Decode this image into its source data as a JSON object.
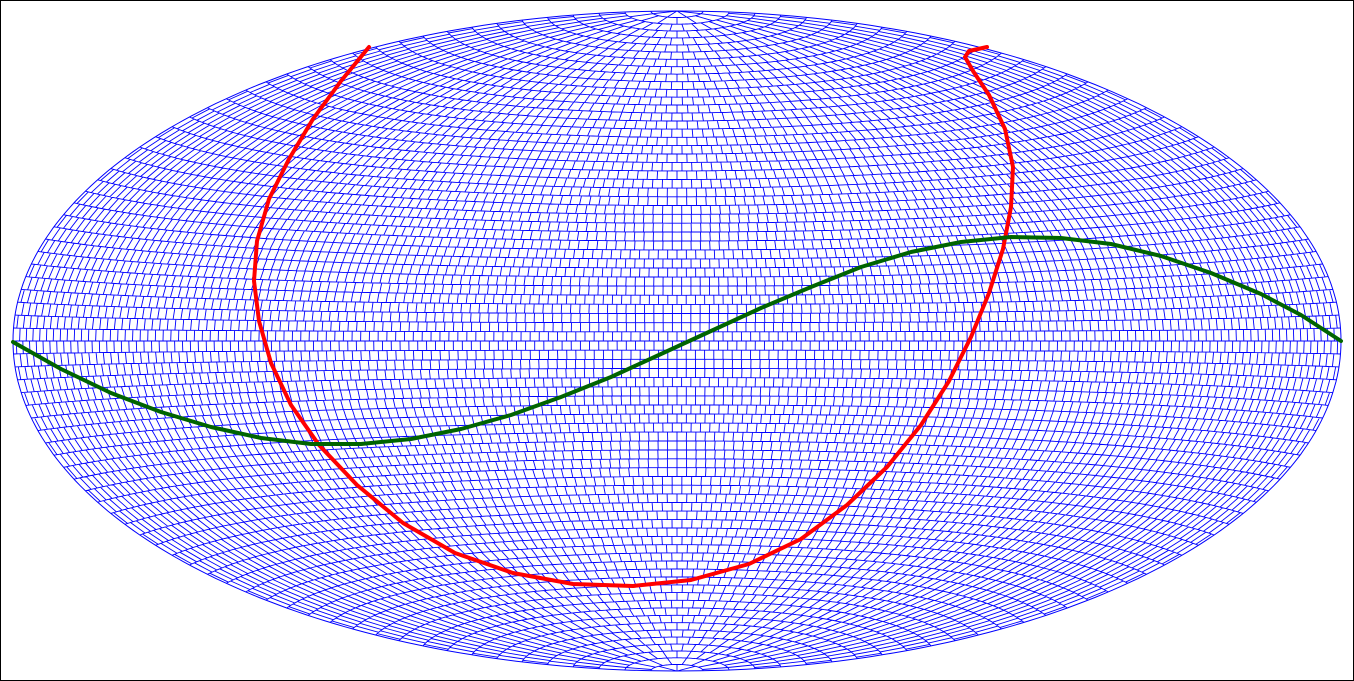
{
  "projection": "aitoff-hammer",
  "background_color": "#ffffff",
  "border_color": "#000000",
  "grid": {
    "color": "#0000ff",
    "latitude_band_degrees": 2.25,
    "cells_per_band_at_equator": 160
  },
  "curves": [
    {
      "id": "red-curve",
      "color": "#ff0000",
      "description_key": "great-circle-red"
    },
    {
      "id": "green-curve",
      "color": "#006400",
      "description_key": "great-circle-green"
    }
  ]
}
